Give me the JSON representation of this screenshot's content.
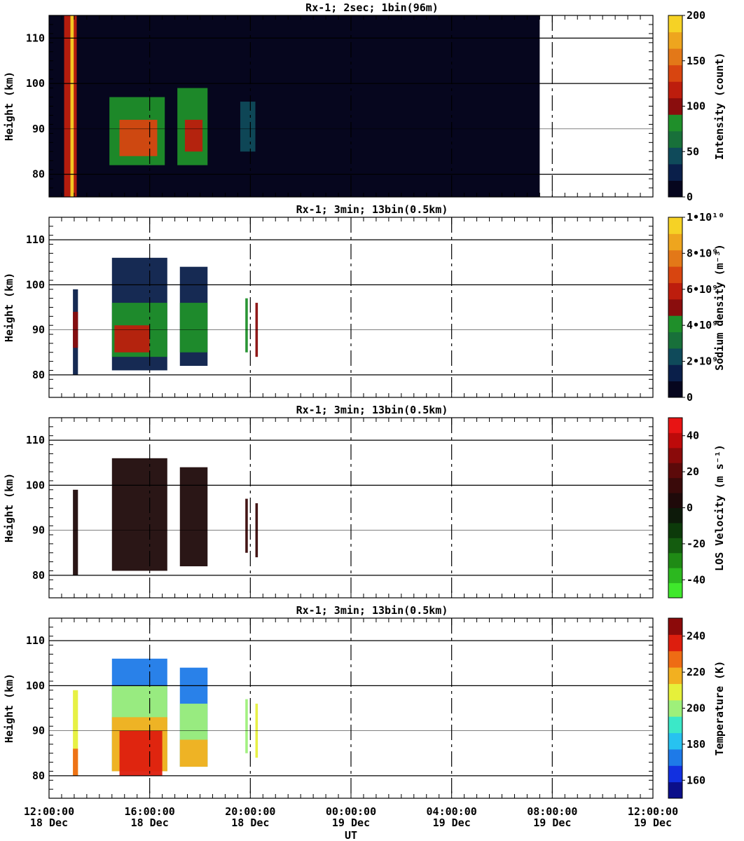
{
  "chart_data": [
    {
      "type": "heatmap",
      "title": "Rx-1;  2sec; 1bin(96m)",
      "ylabel": "Height (km)",
      "ylim": [
        75,
        115
      ],
      "yticks": [
        80,
        90,
        100,
        110
      ],
      "colorbar": {
        "label": "Intensity (count)",
        "ticks": [
          "0",
          "50",
          "100",
          "150",
          "200"
        ],
        "range": [
          0,
          200
        ],
        "colors": [
          "#06061e",
          "#0a1f4a",
          "#0f4a5a",
          "#18703a",
          "#1f8f2a",
          "#8a0d0d",
          "#bd1d0d",
          "#d84510",
          "#e37818",
          "#eea51e",
          "#f6d225"
        ]
      },
      "patches": [
        {
          "t0": 12.6,
          "t1": 13.1,
          "h0": 75,
          "h1": 115,
          "level": 0.55
        },
        {
          "t0": 12.85,
          "t1": 12.98,
          "h0": 75,
          "h1": 115,
          "level": 0.95
        },
        {
          "t0": 14.4,
          "t1": 16.6,
          "h0": 82,
          "h1": 97,
          "level": 0.35
        },
        {
          "t0": 14.8,
          "t1": 16.3,
          "h0": 84,
          "h1": 92,
          "level": 0.65
        },
        {
          "t0": 17.1,
          "t1": 18.3,
          "h0": 82,
          "h1": 99,
          "level": 0.35
        },
        {
          "t0": 17.4,
          "t1": 18.1,
          "h0": 85,
          "h1": 92,
          "level": 0.6
        },
        {
          "t0": 19.6,
          "t1": 20.2,
          "h0": 85,
          "h1": 96,
          "level": 0.2
        }
      ],
      "data_extent": [
        12.0,
        7.5
      ]
    },
    {
      "type": "heatmap",
      "title": "Rx-1; 3min; 13bin(0.5km)",
      "ylabel": "Height (km)",
      "ylim": [
        75,
        115
      ],
      "yticks": [
        80,
        90,
        100,
        110
      ],
      "colorbar": {
        "label": "Sodium density (m⁻³)",
        "ticks": [
          "0",
          "2•10⁹",
          "4•10⁹",
          "6•10⁹",
          "8•10⁹",
          "1•10¹⁰"
        ],
        "range": [
          0,
          10
        ],
        "colors": [
          "#06061e",
          "#0a1f4a",
          "#0f4a5a",
          "#18703a",
          "#1f8f2a",
          "#8a0d0d",
          "#bd1d0d",
          "#d84510",
          "#e37818",
          "#eea51e",
          "#f6d225"
        ]
      },
      "patches": [
        {
          "t0": 12.95,
          "t1": 13.15,
          "h0": 80,
          "h1": 99,
          "level": 0.1
        },
        {
          "t0": 12.95,
          "t1": 13.15,
          "h0": 86,
          "h1": 94,
          "level": 0.45
        },
        {
          "t0": 14.5,
          "t1": 16.7,
          "h0": 81,
          "h1": 106,
          "level": 0.05
        },
        {
          "t0": 14.5,
          "t1": 16.7,
          "h0": 84,
          "h1": 96,
          "level": 0.35
        },
        {
          "t0": 14.6,
          "t1": 16.0,
          "h0": 85,
          "h1": 91,
          "level": 0.6
        },
        {
          "t0": 17.2,
          "t1": 18.3,
          "h0": 82,
          "h1": 104,
          "level": 0.05
        },
        {
          "t0": 17.2,
          "t1": 18.3,
          "h0": 85,
          "h1": 96,
          "level": 0.4
        },
        {
          "t0": 19.8,
          "t1": 19.9,
          "h0": 85,
          "h1": 97,
          "level": 0.4
        },
        {
          "t0": 20.2,
          "t1": 20.3,
          "h0": 84,
          "h1": 96,
          "level": 0.45
        }
      ]
    },
    {
      "type": "heatmap",
      "title": "Rx-1; 3min; 13bin(0.5km)",
      "ylabel": "Height (km)",
      "ylim": [
        75,
        115
      ],
      "yticks": [
        80,
        90,
        100,
        110
      ],
      "colorbar": {
        "label": "LOS Velocity (m s⁻¹)",
        "ticks": [
          "-40",
          "-20",
          "0",
          "20",
          "40"
        ],
        "range": [
          -50,
          50
        ],
        "colors": [
          "#3fe82c",
          "#2cb81f",
          "#1f8a15",
          "#145c0f",
          "#0c3a0a",
          "#0d1a0a",
          "#1f0a0a",
          "#3a0a0a",
          "#5c0a0a",
          "#8a0a0a",
          "#bd0a0a",
          "#e81414"
        ]
      },
      "patches": [
        {
          "t0": 12.95,
          "t1": 13.15,
          "h0": 80,
          "h1": 99,
          "level": 0.55
        },
        {
          "t0": 14.5,
          "t1": 16.7,
          "h0": 81,
          "h1": 106,
          "level": 0.55
        },
        {
          "t0": 17.2,
          "t1": 18.3,
          "h0": 82,
          "h1": 104,
          "level": 0.55
        },
        {
          "t0": 19.8,
          "t1": 19.9,
          "h0": 85,
          "h1": 97,
          "level": 0.6
        },
        {
          "t0": 20.2,
          "t1": 20.3,
          "h0": 84,
          "h1": 96,
          "level": 0.6
        }
      ]
    },
    {
      "type": "heatmap",
      "title": "Rx-1; 3min; 13bin(0.5km)",
      "ylabel": "Height (km)",
      "ylim": [
        75,
        115
      ],
      "yticks": [
        80,
        90,
        100,
        110
      ],
      "colorbar": {
        "label": "Temperature (K)",
        "ticks": [
          "160",
          "180",
          "200",
          "220",
          "240"
        ],
        "range": [
          150,
          250
        ],
        "colors": [
          "#0b0f8a",
          "#1230e0",
          "#1e7ae8",
          "#27c2f0",
          "#3be8c8",
          "#9ef07a",
          "#e6f03a",
          "#f2b020",
          "#ee6c14",
          "#dd1e0e",
          "#8c0a0a"
        ]
      },
      "patches": [
        {
          "t0": 12.95,
          "t1": 13.15,
          "h0": 80,
          "h1": 99,
          "level": 0.55
        },
        {
          "t0": 12.95,
          "t1": 13.15,
          "h0": 80,
          "h1": 86,
          "level": 0.8
        },
        {
          "t0": 14.5,
          "t1": 16.7,
          "h0": 81,
          "h1": 106,
          "level": 0.2
        },
        {
          "t0": 14.5,
          "t1": 16.7,
          "h0": 81,
          "h1": 100,
          "level": 0.5
        },
        {
          "t0": 14.5,
          "t1": 16.7,
          "h0": 81,
          "h1": 93,
          "level": 0.7
        },
        {
          "t0": 14.8,
          "t1": 16.5,
          "h0": 80,
          "h1": 90,
          "level": 0.9
        },
        {
          "t0": 17.2,
          "t1": 18.3,
          "h0": 82,
          "h1": 104,
          "level": 0.15
        },
        {
          "t0": 17.2,
          "t1": 18.3,
          "h0": 82,
          "h1": 96,
          "level": 0.5
        },
        {
          "t0": 17.2,
          "t1": 18.3,
          "h0": 82,
          "h1": 88,
          "level": 0.7
        },
        {
          "t0": 19.8,
          "t1": 19.9,
          "h0": 85,
          "h1": 97,
          "level": 0.5
        },
        {
          "t0": 20.2,
          "t1": 20.3,
          "h0": 84,
          "h1": 96,
          "level": 0.6
        }
      ]
    }
  ],
  "x_axis": {
    "label": "UT",
    "range_hours": [
      12,
      36
    ],
    "ticks": [
      {
        "t": 12,
        "time": "12:00:00",
        "date": "18 Dec"
      },
      {
        "t": 16,
        "time": "16:00:00",
        "date": "18 Dec"
      },
      {
        "t": 20,
        "time": "20:00:00",
        "date": "18 Dec"
      },
      {
        "t": 24,
        "time": "00:00:00",
        "date": "19 Dec"
      },
      {
        "t": 28,
        "time": "04:00:00",
        "date": "19 Dec"
      },
      {
        "t": 32,
        "time": "08:00:00",
        "date": "19 Dec"
      },
      {
        "t": 36,
        "time": "12:00:00",
        "date": "19 Dec"
      }
    ]
  }
}
